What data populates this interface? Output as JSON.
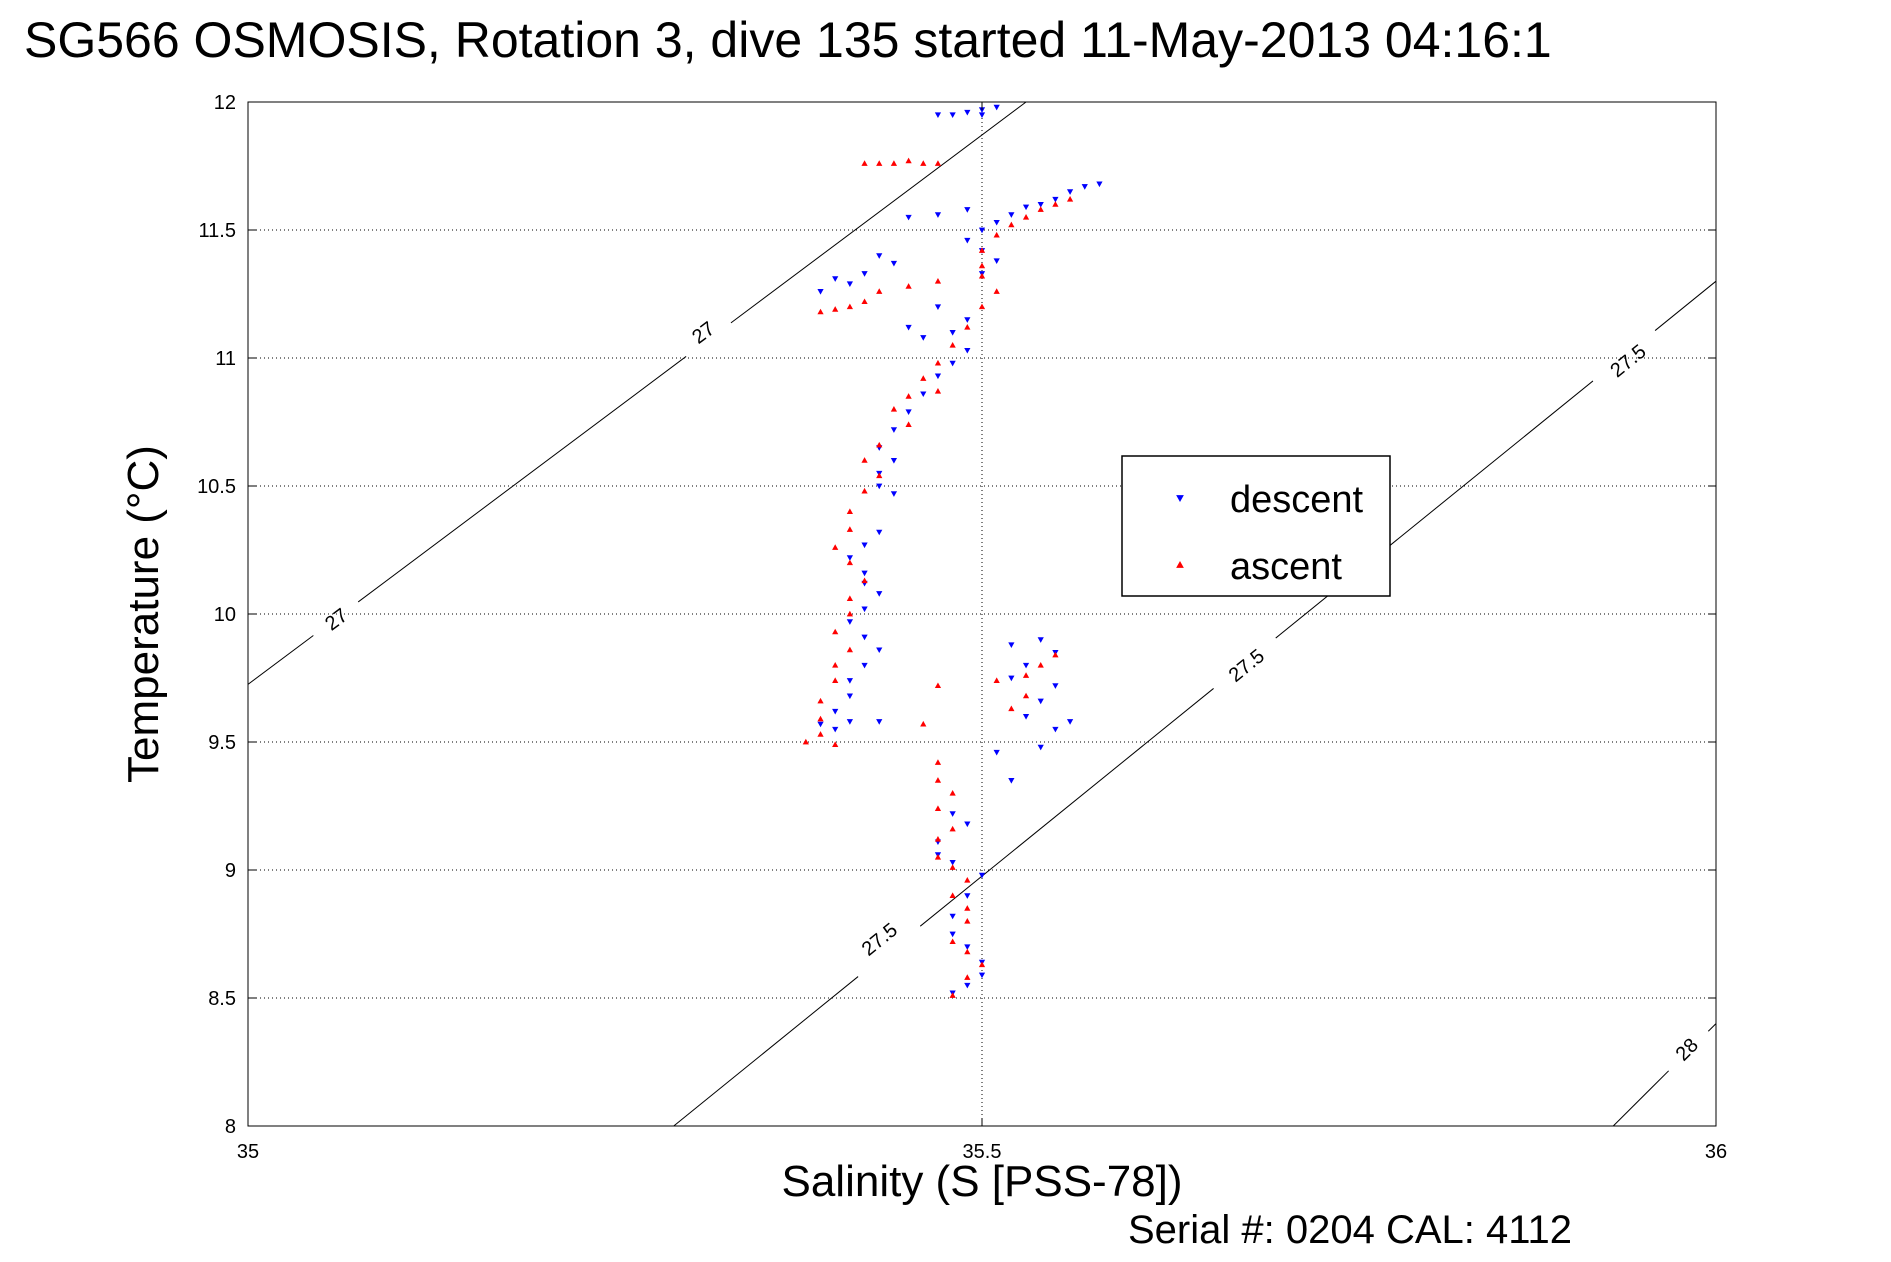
{
  "figure": {
    "title": "SG566 OSMOSIS, Rotation 3, dive 135 started 11-May-2013 04:16:1",
    "footer": "Serial #: 0204  CAL: 4112"
  },
  "colors": {
    "descent": "#0000ff",
    "ascent": "#ff0000",
    "axes": "#000000",
    "grid": "#000000",
    "contour": "#000000"
  },
  "chart_data": {
    "type": "scatter",
    "xlabel": "Salinity (S [PSS-78])",
    "ylabel": "Temperature (°C)",
    "xlim": [
      35,
      36
    ],
    "ylim": [
      8,
      12
    ],
    "x_ticks": [
      35,
      35.5,
      36
    ],
    "x_tick_labels": [
      "35",
      "35.5",
      "36"
    ],
    "y_ticks": [
      8,
      8.5,
      9,
      9.5,
      10,
      10.5,
      11,
      11.5,
      12
    ],
    "y_tick_labels": [
      "8",
      "8.5",
      "9",
      "9.5",
      "10",
      "10.5",
      "11",
      "11.5",
      "12"
    ],
    "grid": true,
    "legend": {
      "placement": "right-center",
      "entries": [
        "descent",
        "ascent"
      ]
    },
    "density_contours": [
      {
        "sigma": 27,
        "label": "27",
        "points": [
          [
            35,
            9.725
          ],
          [
            35.53,
            12
          ]
        ],
        "label_positions": [
          [
            35.06,
            9.98
          ],
          [
            35.31,
            11.1
          ]
        ]
      },
      {
        "sigma": 27.5,
        "label": "27.5",
        "points": [
          [
            35.29,
            8
          ],
          [
            36,
            11.3
          ]
        ],
        "label_positions": [
          [
            35.43,
            8.73
          ],
          [
            35.68,
            9.8
          ],
          [
            35.94,
            10.99
          ]
        ]
      },
      {
        "sigma": 28,
        "label": "28",
        "points": [
          [
            35.93,
            8
          ],
          [
            36,
            8.4
          ]
        ],
        "label_positions": [
          [
            35.98,
            8.3
          ]
        ]
      }
    ],
    "series": [
      {
        "name": "descent",
        "marker": "triangle-down",
        "points": [
          [
            35.48,
            11.95
          ],
          [
            35.49,
            11.96
          ],
          [
            35.5,
            11.97
          ],
          [
            35.51,
            11.98
          ],
          [
            35.47,
            11.95
          ],
          [
            35.5,
            11.95
          ],
          [
            35.58,
            11.68
          ],
          [
            35.57,
            11.67
          ],
          [
            35.56,
            11.65
          ],
          [
            35.55,
            11.62
          ],
          [
            35.54,
            11.6
          ],
          [
            35.53,
            11.59
          ],
          [
            35.52,
            11.56
          ],
          [
            35.51,
            11.53
          ],
          [
            35.5,
            11.5
          ],
          [
            35.49,
            11.46
          ],
          [
            35.5,
            11.42
          ],
          [
            35.51,
            11.38
          ],
          [
            35.5,
            11.33
          ],
          [
            35.47,
            11.56
          ],
          [
            35.49,
            11.58
          ],
          [
            35.45,
            11.55
          ],
          [
            35.43,
            11.4
          ],
          [
            35.44,
            11.37
          ],
          [
            35.42,
            11.33
          ],
          [
            35.41,
            11.29
          ],
          [
            35.39,
            11.26
          ],
          [
            35.4,
            11.31
          ],
          [
            35.47,
            11.2
          ],
          [
            35.49,
            11.15
          ],
          [
            35.48,
            11.1
          ],
          [
            35.46,
            11.08
          ],
          [
            35.45,
            11.12
          ],
          [
            35.49,
            11.03
          ],
          [
            35.48,
            10.98
          ],
          [
            35.47,
            10.93
          ],
          [
            35.46,
            10.86
          ],
          [
            35.45,
            10.79
          ],
          [
            35.44,
            10.72
          ],
          [
            35.43,
            10.65
          ],
          [
            35.44,
            10.6
          ],
          [
            35.43,
            10.55
          ],
          [
            35.43,
            10.5
          ],
          [
            35.44,
            10.47
          ],
          [
            35.43,
            10.32
          ],
          [
            35.42,
            10.27
          ],
          [
            35.41,
            10.22
          ],
          [
            35.42,
            10.16
          ],
          [
            35.42,
            10.12
          ],
          [
            35.43,
            10.08
          ],
          [
            35.42,
            10.02
          ],
          [
            35.41,
            9.97
          ],
          [
            35.42,
            9.91
          ],
          [
            35.43,
            9.86
          ],
          [
            35.42,
            9.8
          ],
          [
            35.41,
            9.74
          ],
          [
            35.41,
            9.68
          ],
          [
            35.4,
            9.62
          ],
          [
            35.39,
            9.57
          ],
          [
            35.41,
            9.58
          ],
          [
            35.43,
            9.58
          ],
          [
            35.4,
            9.55
          ],
          [
            35.52,
            9.88
          ],
          [
            35.54,
            9.9
          ],
          [
            35.55,
            9.85
          ],
          [
            35.53,
            9.8
          ],
          [
            35.52,
            9.75
          ],
          [
            35.55,
            9.72
          ],
          [
            35.54,
            9.66
          ],
          [
            35.53,
            9.6
          ],
          [
            35.55,
            9.55
          ],
          [
            35.56,
            9.58
          ],
          [
            35.54,
            9.48
          ],
          [
            35.51,
            9.46
          ],
          [
            35.52,
            9.35
          ],
          [
            35.48,
            9.22
          ],
          [
            35.49,
            9.18
          ],
          [
            35.47,
            9.11
          ],
          [
            35.47,
            9.06
          ],
          [
            35.48,
            9.03
          ],
          [
            35.5,
            8.98
          ],
          [
            35.49,
            8.9
          ],
          [
            35.48,
            8.82
          ],
          [
            35.48,
            8.75
          ],
          [
            35.49,
            8.7
          ],
          [
            35.5,
            8.64
          ],
          [
            35.5,
            8.59
          ],
          [
            35.49,
            8.55
          ],
          [
            35.48,
            8.52
          ]
        ]
      },
      {
        "name": "ascent",
        "marker": "triangle-up",
        "points": [
          [
            35.42,
            11.76
          ],
          [
            35.43,
            11.76
          ],
          [
            35.44,
            11.76
          ],
          [
            35.45,
            11.77
          ],
          [
            35.46,
            11.76
          ],
          [
            35.47,
            11.76
          ],
          [
            35.56,
            11.62
          ],
          [
            35.55,
            11.6
          ],
          [
            35.54,
            11.58
          ],
          [
            35.53,
            11.55
          ],
          [
            35.52,
            11.52
          ],
          [
            35.51,
            11.48
          ],
          [
            35.5,
            11.42
          ],
          [
            35.5,
            11.36
          ],
          [
            35.5,
            11.32
          ],
          [
            35.51,
            11.26
          ],
          [
            35.5,
            11.2
          ],
          [
            35.41,
            11.2
          ],
          [
            35.4,
            11.19
          ],
          [
            35.39,
            11.18
          ],
          [
            35.42,
            11.22
          ],
          [
            35.43,
            11.26
          ],
          [
            35.45,
            11.28
          ],
          [
            35.47,
            11.3
          ],
          [
            35.49,
            11.12
          ],
          [
            35.48,
            11.05
          ],
          [
            35.47,
            10.98
          ],
          [
            35.46,
            10.92
          ],
          [
            35.47,
            10.87
          ],
          [
            35.45,
            10.85
          ],
          [
            35.44,
            10.8
          ],
          [
            35.45,
            10.74
          ],
          [
            35.43,
            10.66
          ],
          [
            35.42,
            10.6
          ],
          [
            35.43,
            10.54
          ],
          [
            35.42,
            10.48
          ],
          [
            35.41,
            10.4
          ],
          [
            35.41,
            10.33
          ],
          [
            35.4,
            10.26
          ],
          [
            35.41,
            10.2
          ],
          [
            35.42,
            10.13
          ],
          [
            35.41,
            10.06
          ],
          [
            35.41,
            10.0
          ],
          [
            35.4,
            9.93
          ],
          [
            35.41,
            9.86
          ],
          [
            35.4,
            9.8
          ],
          [
            35.4,
            9.74
          ],
          [
            35.39,
            9.66
          ],
          [
            35.39,
            9.59
          ],
          [
            35.39,
            9.53
          ],
          [
            35.38,
            9.5
          ],
          [
            35.4,
            9.49
          ],
          [
            35.47,
            9.72
          ],
          [
            35.51,
            9.74
          ],
          [
            35.53,
            9.76
          ],
          [
            35.54,
            9.8
          ],
          [
            35.55,
            9.84
          ],
          [
            35.53,
            9.68
          ],
          [
            35.52,
            9.63
          ],
          [
            35.46,
            9.57
          ],
          [
            35.47,
            9.42
          ],
          [
            35.47,
            9.35
          ],
          [
            35.48,
            9.3
          ],
          [
            35.47,
            9.24
          ],
          [
            35.48,
            9.16
          ],
          [
            35.47,
            9.12
          ],
          [
            35.47,
            9.05
          ],
          [
            35.48,
            9.01
          ],
          [
            35.49,
            8.96
          ],
          [
            35.48,
            8.9
          ],
          [
            35.49,
            8.85
          ],
          [
            35.49,
            8.8
          ],
          [
            35.48,
            8.72
          ],
          [
            35.49,
            8.68
          ],
          [
            35.5,
            8.63
          ],
          [
            35.49,
            8.58
          ],
          [
            35.48,
            8.51
          ]
        ]
      }
    ]
  }
}
